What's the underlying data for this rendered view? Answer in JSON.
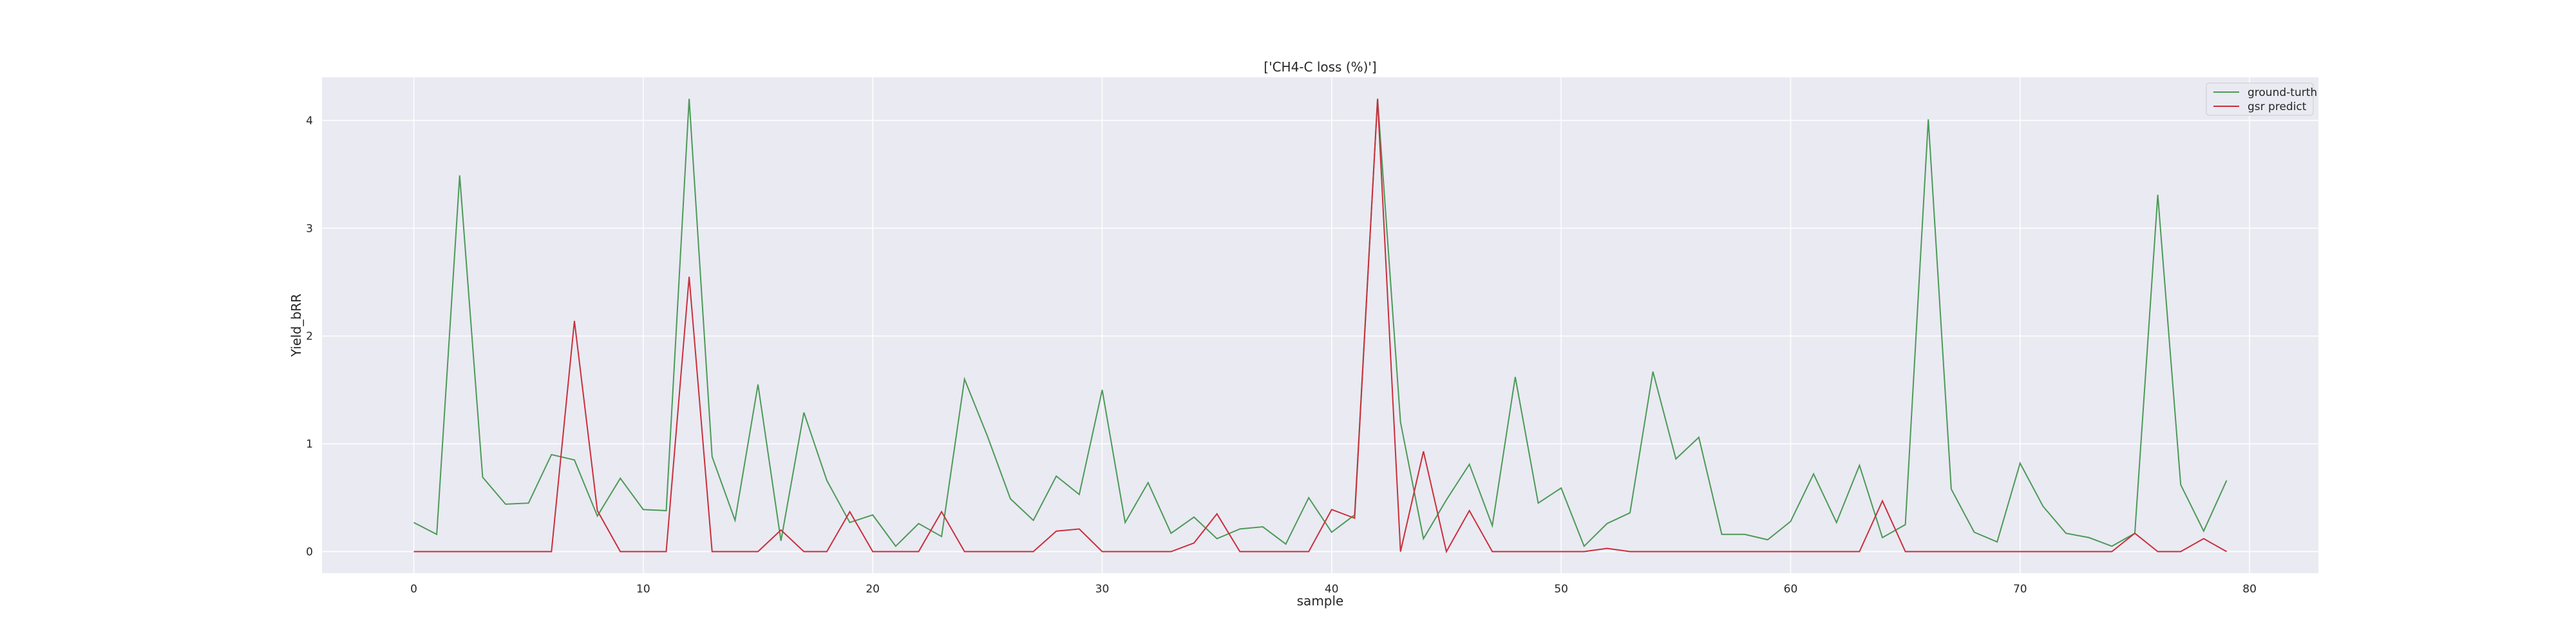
{
  "chart_data": {
    "type": "line",
    "title": "['CH4-C loss (%)']",
    "xlabel": "sample",
    "ylabel": "Yield_bRR",
    "xlim": [
      -4,
      83
    ],
    "ylim": [
      -0.2,
      4.4
    ],
    "x_ticks": [
      0,
      10,
      20,
      30,
      40,
      50,
      60,
      70,
      80
    ],
    "y_ticks": [
      0,
      1,
      2,
      3,
      4
    ],
    "grid": true,
    "legend_position": "top-right",
    "colors": {
      "plot_bg": "#EAEAF2",
      "grid": "#ffffff"
    },
    "series": [
      {
        "name": "ground-turth",
        "color": "#4C9A58",
        "values": [
          0.27,
          0.16,
          3.49,
          0.69,
          0.44,
          0.45,
          0.9,
          0.85,
          0.33,
          0.68,
          0.39,
          0.38,
          4.2,
          0.88,
          0.29,
          1.55,
          0.1,
          1.29,
          0.66,
          0.27,
          0.34,
          0.05,
          0.26,
          0.14,
          1.6,
          1.07,
          0.49,
          0.29,
          0.7,
          0.53,
          1.5,
          0.27,
          0.64,
          0.17,
          0.32,
          0.12,
          0.21,
          0.23,
          0.07,
          0.5,
          0.18,
          0.34,
          4.2,
          1.2,
          0.12,
          0.48,
          0.81,
          0.24,
          1.62,
          0.45,
          0.59,
          0.05,
          0.26,
          0.36,
          1.67,
          0.86,
          1.06,
          0.16,
          0.16,
          0.11,
          0.28,
          0.72,
          0.27,
          0.8,
          0.13,
          0.25,
          4.01,
          0.58,
          0.18,
          0.09,
          0.82,
          0.42,
          0.17,
          0.13,
          0.05,
          0.17,
          3.31,
          0.62,
          0.19,
          0.66
        ]
      },
      {
        "name": "gsr predict",
        "color": "#C8303C",
        "values": [
          0,
          0,
          0,
          0,
          0,
          0,
          0,
          2.14,
          0.38,
          0,
          0,
          0,
          2.55,
          0,
          0,
          0,
          0.2,
          0,
          0,
          0.37,
          0,
          0,
          0,
          0.37,
          0,
          0,
          0,
          0,
          0.19,
          0.21,
          0,
          0,
          0,
          0,
          0.08,
          0.35,
          0,
          0,
          0,
          0,
          0.39,
          0.31,
          4.2,
          0,
          0.93,
          0,
          0.38,
          0,
          0,
          0,
          0,
          0,
          0.03,
          0,
          0,
          0,
          0,
          0,
          0,
          0,
          0,
          0,
          0,
          0,
          0.47,
          0,
          0,
          0,
          0,
          0,
          0,
          0,
          0,
          0,
          0,
          0.17,
          0,
          0,
          0.12,
          0
        ]
      }
    ]
  }
}
